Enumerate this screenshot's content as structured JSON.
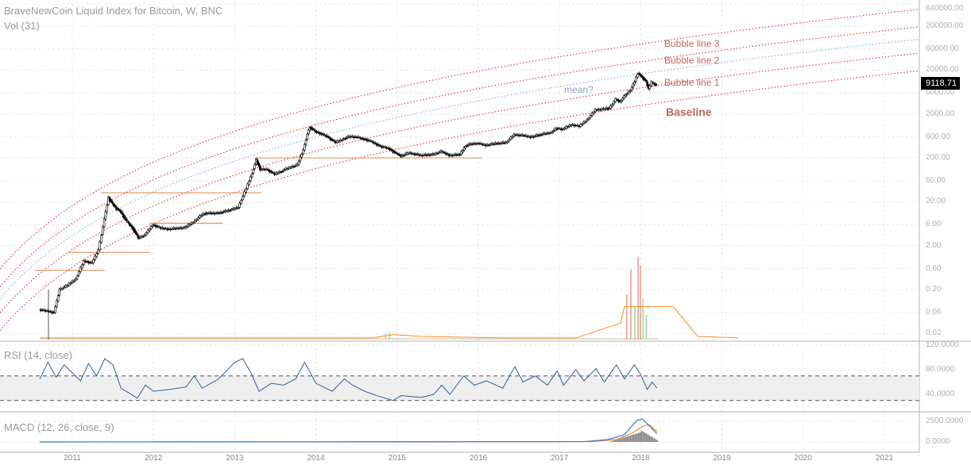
{
  "header": {
    "title": "BraveNewCoin Liquid Index for Bitcoin, W, BNC",
    "volume_label": "Vol (31)"
  },
  "panels": {
    "rsi_label": "RSI (14, close)",
    "macd_label": "MACD (12, 26, close, 9)"
  },
  "last_price": "9118.71",
  "price_axis": [
    "640000.00",
    "200000.00",
    "60000.00",
    "20000.00",
    "6000.00",
    "2000.00",
    "600.00",
    "200.00",
    "60.00",
    "20.00",
    "6.00",
    "2.00",
    "0.60",
    "0.20",
    "0.06",
    "0.02"
  ],
  "rsi_axis": [
    "120.0000",
    "80.0000",
    "40.0000"
  ],
  "macd_axis": [
    "2500.0000",
    "0.0000"
  ],
  "time_axis": [
    "2011",
    "2012",
    "2013",
    "2014",
    "2015",
    "2016",
    "2017",
    "2018",
    "2019",
    "2020",
    "2021"
  ],
  "annotations": {
    "bubble3": "Bubble line 3",
    "bubble2": "Bubble line 2",
    "bubble1": "Bubble line 1",
    "baseline": "Baseline",
    "mean": "mean?"
  },
  "colors": {
    "bubble": "#f23645",
    "mean": "#90b0d0",
    "hline": "#e0a070",
    "rsi": "#2f5f9a",
    "macd": "#2f7fd0",
    "signal": "#ff8a20",
    "volma": "#ff8a20",
    "up": "#000000"
  },
  "chart_data": {
    "type": "candlestick",
    "scale": "log",
    "price": [
      [
        2010.6,
        0.07
      ],
      [
        2010.7,
        0.065
      ],
      [
        2010.78,
        0.06
      ],
      [
        2010.85,
        0.2
      ],
      [
        2010.95,
        0.25
      ],
      [
        2011.05,
        0.35
      ],
      [
        2011.15,
        0.9
      ],
      [
        2011.25,
        0.8
      ],
      [
        2011.33,
        1.6
      ],
      [
        2011.4,
        8
      ],
      [
        2011.45,
        25
      ],
      [
        2011.5,
        18
      ],
      [
        2011.55,
        14
      ],
      [
        2011.6,
        12
      ],
      [
        2011.68,
        7
      ],
      [
        2011.75,
        5
      ],
      [
        2011.82,
        3
      ],
      [
        2011.9,
        3.5
      ],
      [
        2012.0,
        6
      ],
      [
        2012.1,
        5
      ],
      [
        2012.2,
        4.8
      ],
      [
        2012.3,
        5
      ],
      [
        2012.4,
        5.2
      ],
      [
        2012.5,
        7
      ],
      [
        2012.6,
        10
      ],
      [
        2012.65,
        11
      ],
      [
        2012.8,
        11
      ],
      [
        2012.95,
        13
      ],
      [
        2013.05,
        15
      ],
      [
        2013.15,
        40
      ],
      [
        2013.22,
        90
      ],
      [
        2013.27,
        180
      ],
      [
        2013.32,
        110
      ],
      [
        2013.4,
        110
      ],
      [
        2013.5,
        85
      ],
      [
        2013.58,
        100
      ],
      [
        2013.68,
        120
      ],
      [
        2013.78,
        140
      ],
      [
        2013.85,
        300
      ],
      [
        2013.9,
        700
      ],
      [
        2013.93,
        1000
      ],
      [
        2014.0,
        800
      ],
      [
        2014.08,
        700
      ],
      [
        2014.15,
        600
      ],
      [
        2014.25,
        450
      ],
      [
        2014.35,
        550
      ],
      [
        2014.42,
        620
      ],
      [
        2014.5,
        600
      ],
      [
        2014.6,
        540
      ],
      [
        2014.68,
        480
      ],
      [
        2014.8,
        370
      ],
      [
        2014.9,
        330
      ],
      [
        2015.0,
        250
      ],
      [
        2015.05,
        220
      ],
      [
        2015.15,
        260
      ],
      [
        2015.3,
        230
      ],
      [
        2015.45,
        240
      ],
      [
        2015.55,
        280
      ],
      [
        2015.65,
        230
      ],
      [
        2015.78,
        240
      ],
      [
        2015.85,
        380
      ],
      [
        2015.92,
        420
      ],
      [
        2016.0,
        430
      ],
      [
        2016.1,
        390
      ],
      [
        2016.2,
        420
      ],
      [
        2016.35,
        450
      ],
      [
        2016.45,
        680
      ],
      [
        2016.55,
        650
      ],
      [
        2016.65,
        600
      ],
      [
        2016.8,
        700
      ],
      [
        2016.9,
        760
      ],
      [
        2016.97,
        950
      ],
      [
        2017.05,
        900
      ],
      [
        2017.15,
        1150
      ],
      [
        2017.25,
        1050
      ],
      [
        2017.35,
        1500
      ],
      [
        2017.45,
        2500
      ],
      [
        2017.55,
        2600
      ],
      [
        2017.62,
        2700
      ],
      [
        2017.7,
        4300
      ],
      [
        2017.75,
        3800
      ],
      [
        2017.82,
        5500
      ],
      [
        2017.88,
        7000
      ],
      [
        2017.93,
        11000
      ],
      [
        2017.97,
        17000
      ],
      [
        2018.02,
        14000
      ],
      [
        2018.07,
        11000
      ],
      [
        2018.1,
        7500
      ],
      [
        2018.14,
        10500
      ],
      [
        2018.2,
        9118.71
      ]
    ],
    "bubble_model": {
      "formula": "log10(price)=A+B*log10(year-2009)",
      "A": -1.886,
      "B": 5.64,
      "offsets": {
        "baseline": 0,
        "bubble1": 0.4,
        "mean": 0.72,
        "bubble2": 1.0,
        "bubble3": 1.4
      }
    },
    "horizontal_levels": [
      [
        2010.55,
        2011.4,
        0.55
      ],
      [
        2010.95,
        2011.95,
        1.4
      ],
      [
        2011.95,
        2012.85,
        6.5
      ],
      [
        2011.35,
        2013.33,
        32
      ],
      [
        2013.25,
        2016.05,
        200
      ]
    ],
    "volume": {
      "spikes": [
        [
          2017.82,
          0.55
        ],
        [
          2017.87,
          0.85
        ],
        [
          2017.92,
          0.4
        ],
        [
          2017.96,
          1.0
        ],
        [
          2017.99,
          0.9
        ],
        [
          2018.02,
          0.5
        ],
        [
          2018.06,
          0.3
        ],
        [
          2014.85,
          0.08
        ],
        [
          2014.9,
          0.1
        ]
      ],
      "ma": [
        [
          2010.6,
          0.02
        ],
        [
          2014.7,
          0.02
        ],
        [
          2014.95,
          0.06
        ],
        [
          2015.3,
          0.04
        ],
        [
          2016.3,
          0.02
        ],
        [
          2017.2,
          0.02
        ],
        [
          2017.75,
          0.2
        ],
        [
          2017.8,
          0.4
        ],
        [
          2018.4,
          0.4
        ],
        [
          2018.7,
          0.04
        ],
        [
          2019.2,
          0.02
        ]
      ]
    },
    "rsi": [
      [
        2010.6,
        65
      ],
      [
        2010.7,
        92
      ],
      [
        2010.8,
        68
      ],
      [
        2010.9,
        88
      ],
      [
        2011.0,
        75
      ],
      [
        2011.1,
        62
      ],
      [
        2011.2,
        90
      ],
      [
        2011.3,
        70
      ],
      [
        2011.4,
        98
      ],
      [
        2011.5,
        88
      ],
      [
        2011.6,
        50
      ],
      [
        2011.7,
        42
      ],
      [
        2011.8,
        34
      ],
      [
        2011.9,
        55
      ],
      [
        2012.0,
        45
      ],
      [
        2012.2,
        48
      ],
      [
        2012.4,
        52
      ],
      [
        2012.5,
        70
      ],
      [
        2012.6,
        50
      ],
      [
        2012.8,
        65
      ],
      [
        2013.0,
        92
      ],
      [
        2013.1,
        98
      ],
      [
        2013.2,
        75
      ],
      [
        2013.3,
        45
      ],
      [
        2013.45,
        58
      ],
      [
        2013.6,
        55
      ],
      [
        2013.75,
        65
      ],
      [
        2013.86,
        92
      ],
      [
        2013.92,
        78
      ],
      [
        2014.0,
        58
      ],
      [
        2014.2,
        45
      ],
      [
        2014.35,
        65
      ],
      [
        2014.45,
        55
      ],
      [
        2014.6,
        45
      ],
      [
        2014.75,
        38
      ],
      [
        2014.95,
        30
      ],
      [
        2015.05,
        38
      ],
      [
        2015.3,
        35
      ],
      [
        2015.45,
        40
      ],
      [
        2015.55,
        55
      ],
      [
        2015.65,
        40
      ],
      [
        2015.82,
        70
      ],
      [
        2015.95,
        55
      ],
      [
        2016.1,
        62
      ],
      [
        2016.3,
        50
      ],
      [
        2016.45,
        85
      ],
      [
        2016.55,
        60
      ],
      [
        2016.7,
        70
      ],
      [
        2016.85,
        55
      ],
      [
        2016.97,
        78
      ],
      [
        2017.05,
        55
      ],
      [
        2017.2,
        80
      ],
      [
        2017.3,
        62
      ],
      [
        2017.45,
        82
      ],
      [
        2017.55,
        60
      ],
      [
        2017.7,
        88
      ],
      [
        2017.8,
        65
      ],
      [
        2017.92,
        88
      ],
      [
        2018.0,
        72
      ],
      [
        2018.08,
        48
      ],
      [
        2018.14,
        60
      ],
      [
        2018.2,
        50
      ]
    ],
    "macd": {
      "macd": [
        [
          2010.6,
          0
        ],
        [
          2017.3,
          40
        ],
        [
          2017.6,
          300
        ],
        [
          2017.8,
          900
        ],
        [
          2017.95,
          2600
        ],
        [
          2018.02,
          2800
        ],
        [
          2018.1,
          2000
        ],
        [
          2018.2,
          1000
        ]
      ],
      "signal": [
        [
          2010.6,
          0
        ],
        [
          2017.4,
          40
        ],
        [
          2017.7,
          300
        ],
        [
          2017.9,
          1100
        ],
        [
          2018.02,
          1900
        ],
        [
          2018.1,
          2100
        ],
        [
          2018.2,
          1300
        ]
      ]
    },
    "rsi_band": [
      30,
      70
    ],
    "ylim_rsi": [
      0,
      140
    ]
  }
}
